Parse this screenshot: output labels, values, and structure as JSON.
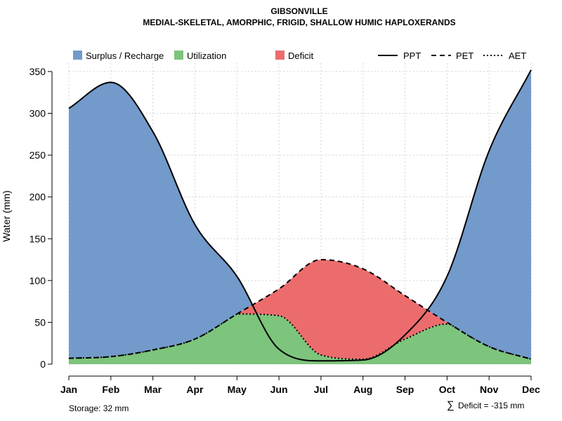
{
  "chart_data": {
    "type": "area",
    "title": "GIBSONVILLE",
    "subtitle": "MEDIAL-SKELETAL, AMORPHIC, FRIGID, SHALLOW HUMIC HAPLOXERANDS",
    "xlabel": "",
    "ylabel": "Water (mm)",
    "categories": [
      "Jan",
      "Feb",
      "Mar",
      "Apr",
      "May",
      "Jun",
      "Jul",
      "Aug",
      "Sep",
      "Oct",
      "Nov",
      "Dec"
    ],
    "ylim": [
      0,
      360
    ],
    "yticks": [
      0,
      50,
      100,
      150,
      200,
      250,
      300,
      350
    ],
    "grid": true,
    "legend_position": "top",
    "legend": {
      "areas": [
        {
          "label": "Surplus / Recharge",
          "color": "#729acb"
        },
        {
          "label": "Utilization",
          "color": "#7dc47c"
        },
        {
          "label": "Deficit",
          "color": "#ec6c6d"
        }
      ],
      "lines": [
        {
          "label": "PPT",
          "style": "solid"
        },
        {
          "label": "PET",
          "style": "dashed"
        },
        {
          "label": "AET",
          "style": "dotted"
        }
      ]
    },
    "series": [
      {
        "name": "PPT",
        "values": [
          306,
          337,
          278,
          167,
          105,
          18,
          4,
          5,
          35,
          105,
          255,
          352
        ]
      },
      {
        "name": "PET",
        "values": [
          7,
          9,
          17,
          30,
          60,
          90,
          125,
          114,
          82,
          50,
          21,
          6
        ]
      },
      {
        "name": "AET",
        "values": [
          7,
          9,
          17,
          30,
          60,
          58,
          11,
          6,
          30,
          48,
          21,
          6
        ]
      }
    ],
    "footer": {
      "storage": "Storage: 32 mm",
      "deficit_symbol": "∑",
      "deficit": "Deficit = -315 mm"
    }
  }
}
